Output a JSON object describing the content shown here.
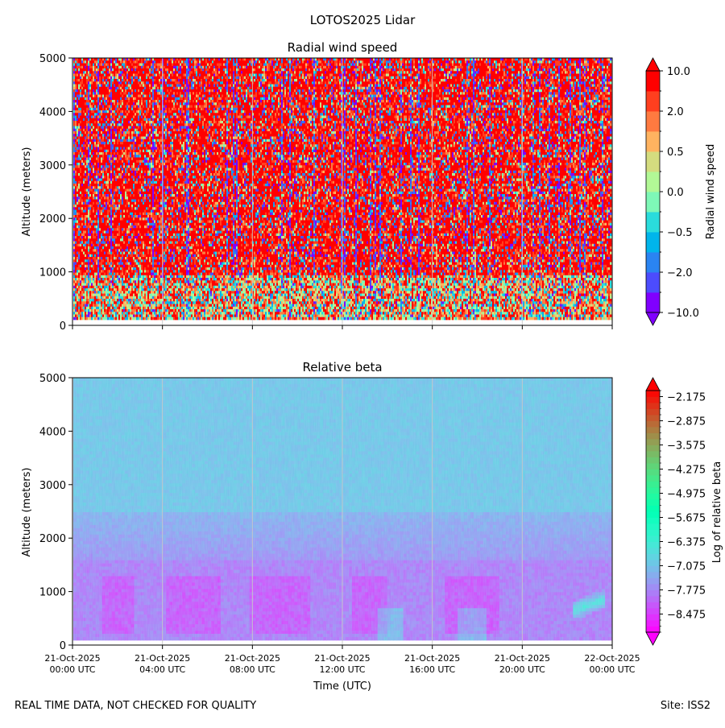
{
  "figure": {
    "title": "LOTOS2025 Lidar",
    "footer_left": "REAL TIME DATA, NOT CHECKED FOR QUALITY",
    "footer_right": "Site: ISS2"
  },
  "chart_data": [
    {
      "type": "heatmap",
      "title": "Radial wind speed",
      "xlabel": "",
      "ylabel": "Altitude (meters)",
      "ylim": [
        0,
        5000
      ],
      "yticks": [
        "0",
        "1000",
        "2000",
        "3000",
        "4000",
        "5000"
      ],
      "xlim_hours": [
        0,
        24
      ],
      "xticks_hours": [
        0,
        4,
        8,
        12,
        16,
        20,
        24
      ],
      "colorbar": {
        "label": "Radial wind speed",
        "scale": "symlog",
        "extend": "both",
        "tick_labels": [
          "10.0",
          "2.0",
          "0.5",
          "0.0",
          "−0.5",
          "−2.0",
          "−10.0"
        ],
        "colors": [
          "#8000ff",
          "#4c4cfd",
          "#2a84f2",
          "#00b5eb",
          "#2adcdc",
          "#7ef8b7",
          "#b2f896",
          "#d4dc7f",
          "#ffb360",
          "#ff7a40",
          "#ff3f1f",
          "#ff0000"
        ]
      }
    },
    {
      "type": "heatmap",
      "title": "Relative beta",
      "xlabel": "Time (UTC)",
      "ylabel": "Altitude (meters)",
      "ylim": [
        0,
        5000
      ],
      "yticks": [
        "0",
        "1000",
        "2000",
        "3000",
        "4000",
        "5000"
      ],
      "xlim_hours": [
        0,
        24
      ],
      "xticks_hours": [
        0,
        4,
        8,
        12,
        16,
        20,
        24
      ],
      "xtick_labels": [
        {
          "date": "21-Oct-2025",
          "time": "00:00 UTC"
        },
        {
          "date": "21-Oct-2025",
          "time": "04:00 UTC"
        },
        {
          "date": "21-Oct-2025",
          "time": "08:00 UTC"
        },
        {
          "date": "21-Oct-2025",
          "time": "12:00 UTC"
        },
        {
          "date": "21-Oct-2025",
          "time": "16:00 UTC"
        },
        {
          "date": "21-Oct-2025",
          "time": "20:00 UTC"
        },
        {
          "date": "22-Oct-2025",
          "time": "00:00 UTC"
        }
      ],
      "colorbar": {
        "label": "Log of relative beta",
        "extend": "both",
        "range": [
          -9.0,
          -2.0
        ],
        "tick_values": [
          -2.175,
          -2.875,
          -3.575,
          -4.275,
          -4.975,
          -5.675,
          -6.375,
          -7.075,
          -7.775,
          -8.475
        ],
        "tick_labels": [
          "−2.175",
          "−2.875",
          "−3.575",
          "−4.275",
          "−4.975",
          "−5.675",
          "−6.375",
          "−7.075",
          "−7.775",
          "−8.475"
        ]
      }
    }
  ]
}
